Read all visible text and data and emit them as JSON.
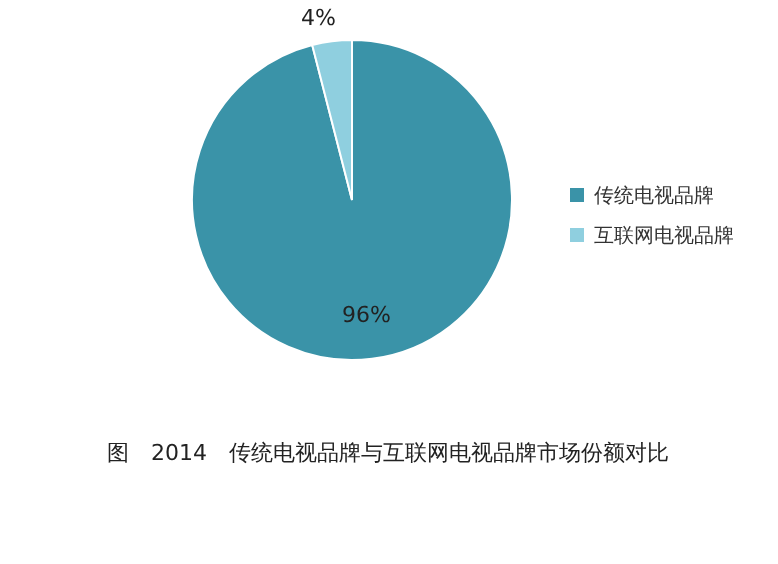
{
  "chart_data": {
    "type": "pie",
    "title": "图　2014　传统电视品牌与互联网电视品牌市场份额对比",
    "categories": [
      "传统电视品牌",
      "互联网电视品牌"
    ],
    "values": [
      96,
      4
    ],
    "colors": [
      "#3a93a8",
      "#8fcfdf"
    ],
    "value_labels": [
      "96%",
      "4%"
    ],
    "legend": "right"
  }
}
